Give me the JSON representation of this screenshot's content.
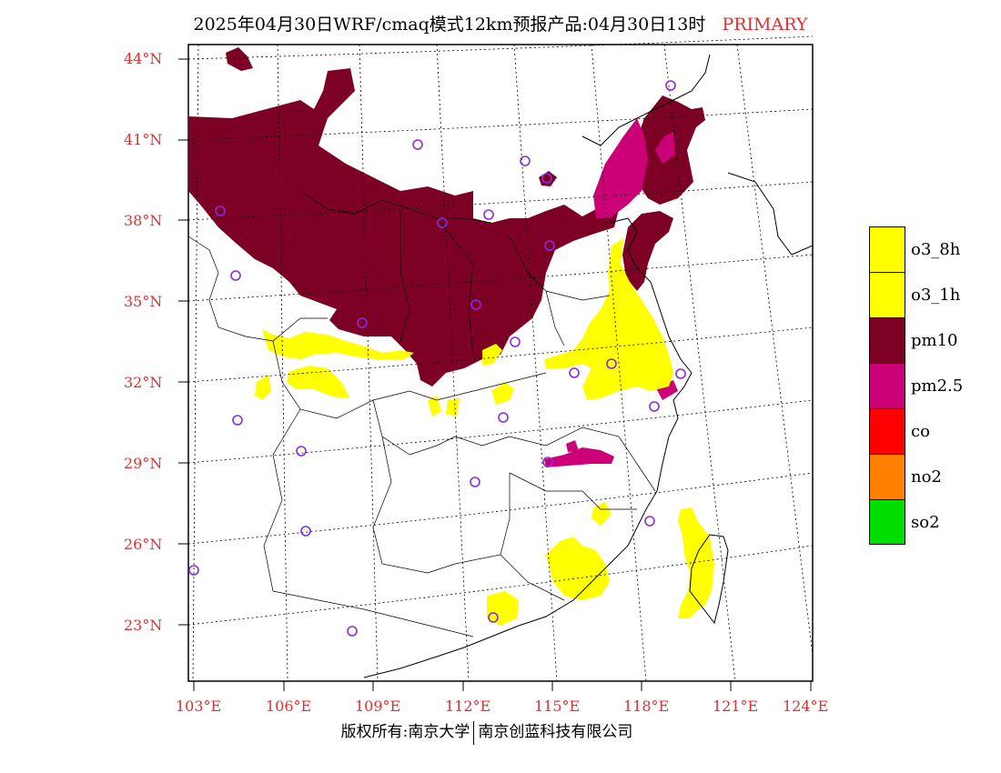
{
  "title": {
    "main": "2025年04月30日WRF/cmaq模式12km预报产品:04月30日13时",
    "tag": "PRIMARY"
  },
  "axes": {
    "lat_labels": [
      "44°N",
      "41°N",
      "38°N",
      "35°N",
      "32°N",
      "29°N",
      "26°N",
      "23°N"
    ],
    "lon_labels": [
      "103°E",
      "106°E",
      "109°E",
      "112°E",
      "115°E",
      "118°E",
      "121°E",
      "124°E"
    ]
  },
  "legend": {
    "items": [
      {
        "label": "o3_8h",
        "color": "#ffff00"
      },
      {
        "label": "o3_1h",
        "color": "#ffff00"
      },
      {
        "label": "pm10",
        "color": "#7d0025"
      },
      {
        "label": "pm2.5",
        "color": "#cc0077"
      },
      {
        "label": "co",
        "color": "#ff0000"
      },
      {
        "label": "no2",
        "color": "#ff7f00"
      },
      {
        "label": "so2",
        "color": "#00dd00"
      }
    ]
  },
  "colors": {
    "pm10": "#7d0025",
    "pm25": "#cc0077",
    "o3": "#ffff00",
    "city_marker": "#8a2be2",
    "axis_text": "#e03030"
  },
  "footer": {
    "left": "版权所有:南京大学",
    "right": "南京创蓝科技有限公司"
  }
}
